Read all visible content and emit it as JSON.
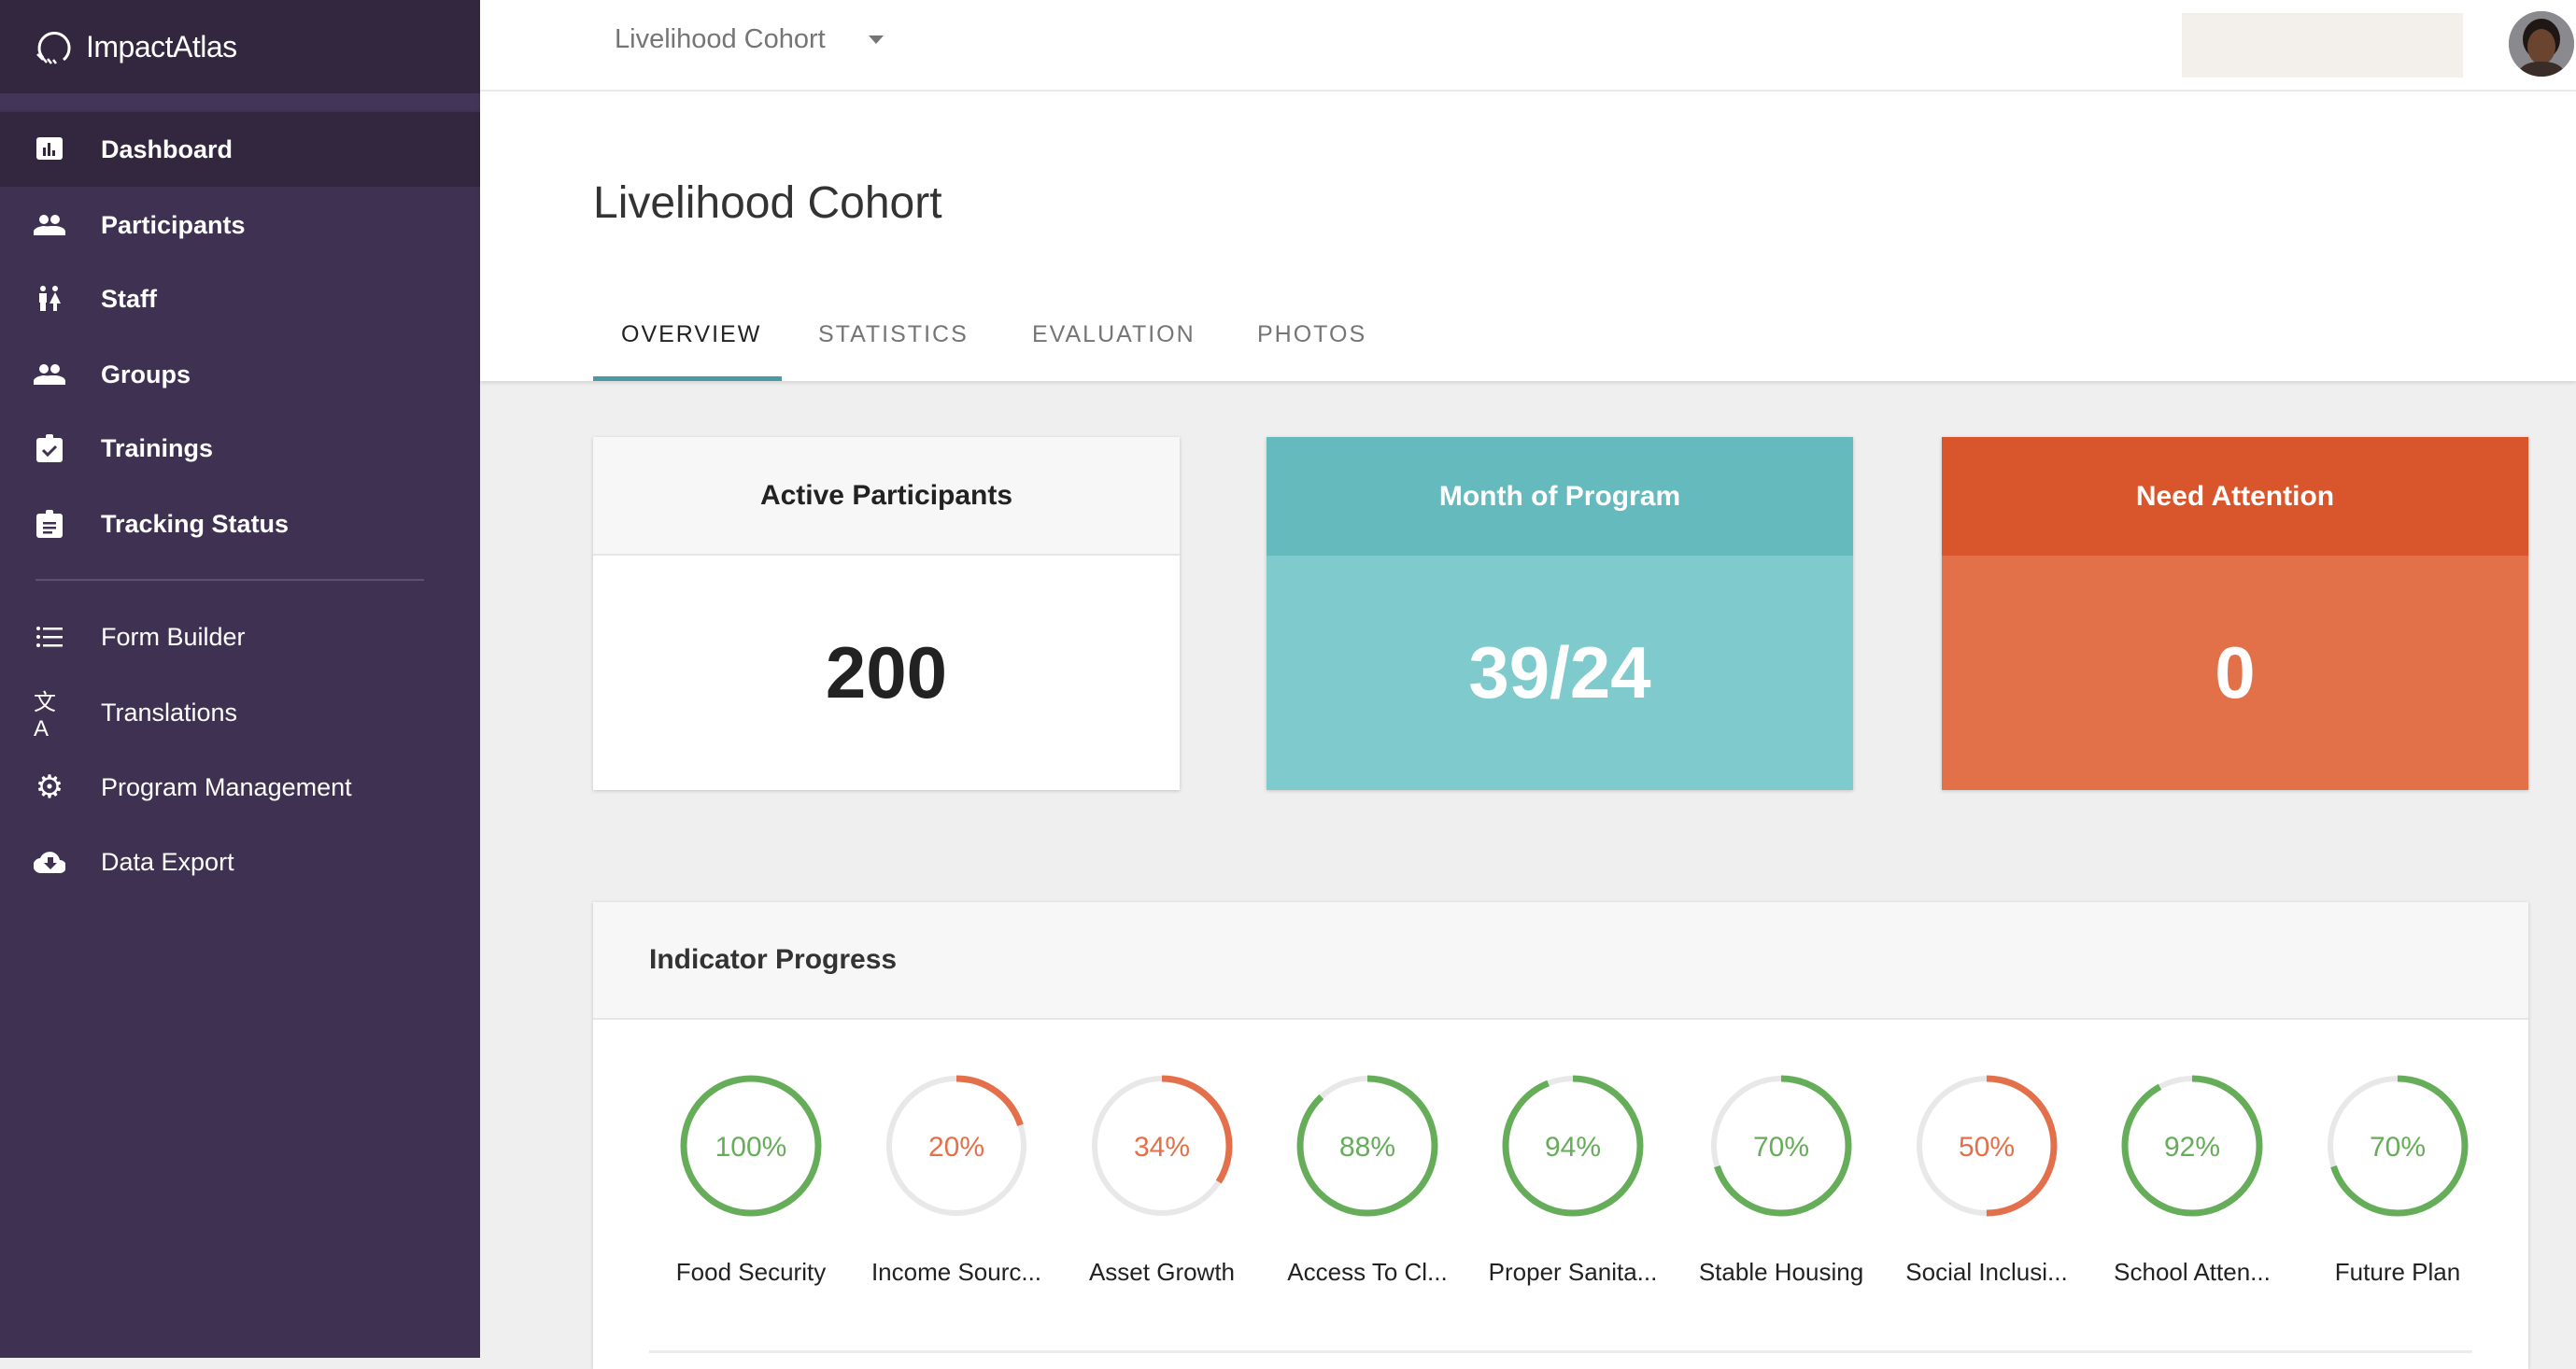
{
  "app": {
    "name": "ImpactAtlas"
  },
  "sidebar": {
    "items": [
      {
        "label": "Dashboard",
        "icon": "bar-chart-icon",
        "active": true
      },
      {
        "label": "Participants",
        "icon": "people-icon"
      },
      {
        "label": "Staff",
        "icon": "staff-icon"
      },
      {
        "label": "Groups",
        "icon": "people-icon"
      },
      {
        "label": "Trainings",
        "icon": "clipboard-check-icon"
      },
      {
        "label": "Tracking Status",
        "icon": "clipboard-list-icon"
      }
    ],
    "admin_items": [
      {
        "label": "Form Builder",
        "icon": "list-icon"
      },
      {
        "label": "Translations",
        "icon": "translate-icon"
      },
      {
        "label": "Program Management",
        "icon": "gear-icon"
      },
      {
        "label": "Data Export",
        "icon": "cloud-download-icon"
      }
    ]
  },
  "header": {
    "cohort_select": "Livelihood Cohort"
  },
  "page": {
    "title": "Livelihood Cohort",
    "tabs": [
      {
        "label": "OVERVIEW",
        "active": true
      },
      {
        "label": "STATISTICS"
      },
      {
        "label": "EVALUATION"
      },
      {
        "label": "PHOTOS"
      }
    ]
  },
  "cards": [
    {
      "title": "Active Participants",
      "value": "200"
    },
    {
      "title": "Month of Program",
      "value": "39/24",
      "head_color": "#65babd",
      "body_color": "#7fcacc"
    },
    {
      "title": "Need Attention",
      "value": "0",
      "head_color": "#d9552b",
      "body_color": "#e2714a"
    }
  ],
  "indicators": {
    "title": "Indicator Progress",
    "colors": {
      "good": "#66ad5a",
      "low": "#e3704a",
      "track": "#e8e8e8"
    },
    "items": [
      {
        "label": "Food Security",
        "value": 100,
        "text": "100%",
        "status": "good"
      },
      {
        "label": "Income Sourc...",
        "value": 20,
        "text": "20%",
        "status": "low"
      },
      {
        "label": "Asset Growth",
        "value": 34,
        "text": "34%",
        "status": "low"
      },
      {
        "label": "Access To Cl...",
        "value": 88,
        "text": "88%",
        "status": "good"
      },
      {
        "label": "Proper Sanita...",
        "value": 94,
        "text": "94%",
        "status": "good"
      },
      {
        "label": "Stable Housing",
        "value": 70,
        "text": "70%",
        "status": "good"
      },
      {
        "label": "Social Inclusi...",
        "value": 50,
        "text": "50%",
        "status": "low"
      },
      {
        "label": "School Atten...",
        "value": 92,
        "text": "92%",
        "status": "good"
      },
      {
        "label": "Future Plan",
        "value": 70,
        "text": "70%",
        "status": "good"
      }
    ]
  }
}
